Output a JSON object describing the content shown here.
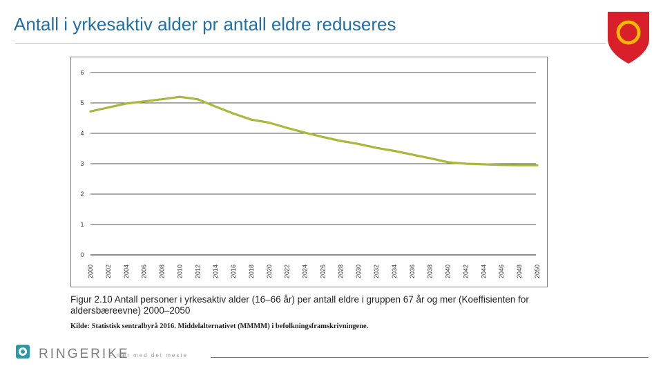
{
  "slide": {
    "title": "Antall i yrkesaktiv alder pr antall eldre reduseres"
  },
  "figure": {
    "caption": "Figur 2.10  Antall personer i yrkesaktiv alder (16–66 år) per antall eldre i gruppen 67 år og mer (Koeffisienten for aldersbæreevne) 2000–2050",
    "source": "Kilde: Statistisk sentralbyrå 2016. Middelalternativet (MMMM) i befolkningsframskrivningene."
  },
  "footer": {
    "brand": "RINGERIKE",
    "tagline": "– nær med det meste"
  },
  "colors": {
    "title": "#1f6fa8",
    "line": "#a8b83a",
    "crest": "#d81f2a",
    "crest_ring": "#f5b800",
    "footer_accent": "#2b9aa8"
  },
  "chart_data": {
    "type": "line",
    "title": "",
    "xlabel": "",
    "ylabel": "",
    "ylim": [
      0,
      6
    ],
    "yticks": [
      "0",
      "1",
      "2",
      "3",
      "4",
      "5",
      "6"
    ],
    "xticks": [
      "2000",
      "2002",
      "2004",
      "2006",
      "2008",
      "2010",
      "2012",
      "2014",
      "2016",
      "2018",
      "2020",
      "2022",
      "2024",
      "2026",
      "2028",
      "2030",
      "2032",
      "2034",
      "2036",
      "2038",
      "2040",
      "2042",
      "2044",
      "2046",
      "2048",
      "2050"
    ],
    "series": [
      {
        "name": "Koeffisienten for aldersbæreevne",
        "x": [
          2000,
          2002,
          2004,
          2006,
          2008,
          2010,
          2012,
          2014,
          2016,
          2018,
          2020,
          2022,
          2024,
          2026,
          2028,
          2030,
          2032,
          2034,
          2036,
          2038,
          2040,
          2042,
          2044,
          2046,
          2048,
          2050
        ],
        "values": [
          4.72,
          4.85,
          4.98,
          5.05,
          5.12,
          5.2,
          5.12,
          4.88,
          4.65,
          4.45,
          4.35,
          4.18,
          4.02,
          3.88,
          3.75,
          3.65,
          3.52,
          3.42,
          3.3,
          3.18,
          3.05,
          3.0,
          2.98,
          2.96,
          2.95,
          2.95
        ]
      }
    ]
  }
}
